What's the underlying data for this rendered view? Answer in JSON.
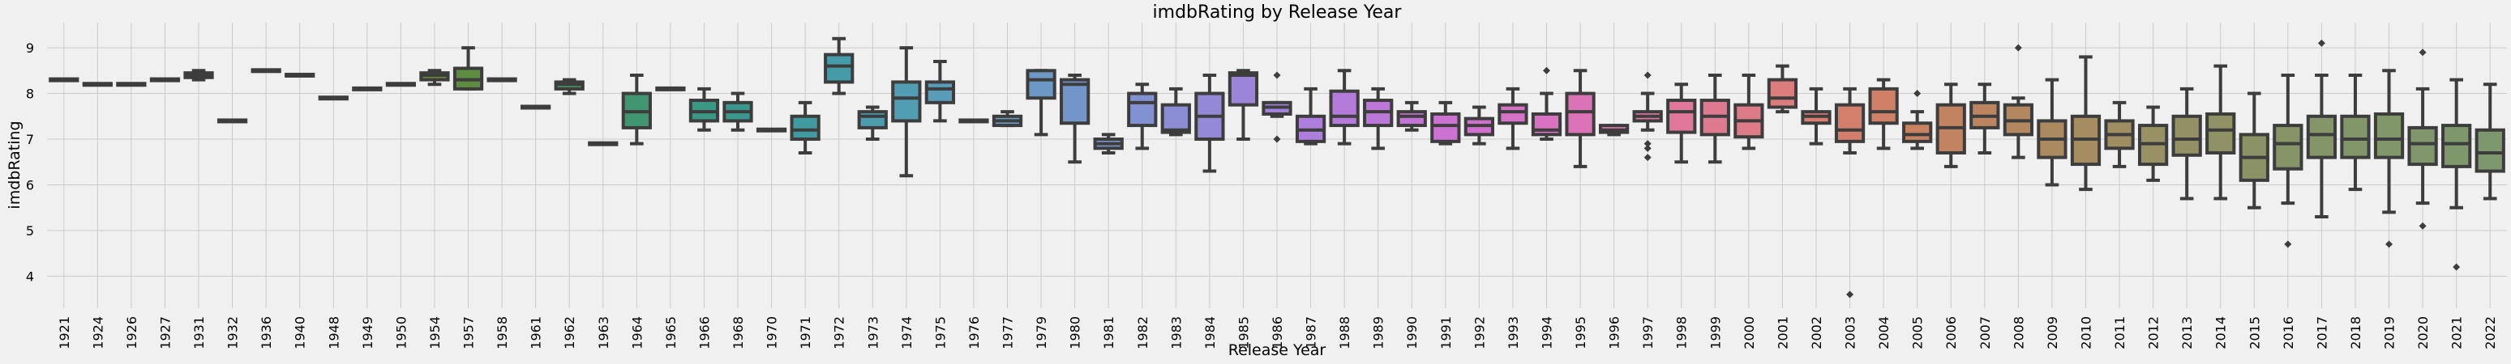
{
  "chart_data": {
    "type": "box",
    "title": "imdbRating by Release Year",
    "xlabel": "Release Year",
    "ylabel": "imdbRating",
    "ylim": [
      3.3,
      9.55
    ],
    "yticks": [
      4,
      5,
      6,
      7,
      8,
      9
    ],
    "grid": true,
    "categories": [
      "1921",
      "1924",
      "1926",
      "1927",
      "1931",
      "1932",
      "1936",
      "1940",
      "1948",
      "1949",
      "1950",
      "1954",
      "1957",
      "1958",
      "1961",
      "1962",
      "1963",
      "1964",
      "1965",
      "1966",
      "1968",
      "1970",
      "1971",
      "1972",
      "1973",
      "1974",
      "1975",
      "1976",
      "1977",
      "1979",
      "1980",
      "1981",
      "1982",
      "1983",
      "1984",
      "1985",
      "1986",
      "1987",
      "1988",
      "1989",
      "1990",
      "1991",
      "1992",
      "1993",
      "1994",
      "1995",
      "1996",
      "1997",
      "1998",
      "1999",
      "2000",
      "2001",
      "2002",
      "2003",
      "2004",
      "2005",
      "2006",
      "2007",
      "2008",
      "2009",
      "2010",
      "2011",
      "2012",
      "2013",
      "2014",
      "2015",
      "2016",
      "2017",
      "2018",
      "2019",
      "2020",
      "2021",
      "2022"
    ],
    "boxes": [
      {
        "min": 8.3,
        "q1": 8.3,
        "median": 8.3,
        "q3": 8.3,
        "max": 8.3,
        "outliers": []
      },
      {
        "min": 8.2,
        "q1": 8.2,
        "median": 8.2,
        "q3": 8.2,
        "max": 8.2,
        "outliers": []
      },
      {
        "min": 8.2,
        "q1": 8.2,
        "median": 8.2,
        "q3": 8.2,
        "max": 8.2,
        "outliers": []
      },
      {
        "min": 8.3,
        "q1": 8.3,
        "median": 8.3,
        "q3": 8.3,
        "max": 8.3,
        "outliers": []
      },
      {
        "min": 8.3,
        "q1": 8.35,
        "median": 8.4,
        "q3": 8.45,
        "max": 8.5,
        "outliers": []
      },
      {
        "min": 7.4,
        "q1": 7.4,
        "median": 7.4,
        "q3": 7.4,
        "max": 7.4,
        "outliers": []
      },
      {
        "min": 8.5,
        "q1": 8.5,
        "median": 8.5,
        "q3": 8.5,
        "max": 8.5,
        "outliers": []
      },
      {
        "min": 8.4,
        "q1": 8.4,
        "median": 8.4,
        "q3": 8.4,
        "max": 8.4,
        "outliers": []
      },
      {
        "min": 7.9,
        "q1": 7.9,
        "median": 7.9,
        "q3": 7.9,
        "max": 7.9,
        "outliers": []
      },
      {
        "min": 8.1,
        "q1": 8.1,
        "median": 8.1,
        "q3": 8.1,
        "max": 8.1,
        "outliers": []
      },
      {
        "min": 8.2,
        "q1": 8.2,
        "median": 8.2,
        "q3": 8.2,
        "max": 8.2,
        "outliers": []
      },
      {
        "min": 8.2,
        "q1": 8.3,
        "median": 8.4,
        "q3": 8.45,
        "max": 8.5,
        "outliers": []
      },
      {
        "min": 8.1,
        "q1": 8.1,
        "median": 8.3,
        "q3": 8.55,
        "max": 9.0,
        "outliers": []
      },
      {
        "min": 8.3,
        "q1": 8.3,
        "median": 8.3,
        "q3": 8.3,
        "max": 8.3,
        "outliers": []
      },
      {
        "min": 7.7,
        "q1": 7.7,
        "median": 7.7,
        "q3": 7.7,
        "max": 7.7,
        "outliers": []
      },
      {
        "min": 8.0,
        "q1": 8.1,
        "median": 8.2,
        "q3": 8.25,
        "max": 8.3,
        "outliers": []
      },
      {
        "min": 6.9,
        "q1": 6.9,
        "median": 6.9,
        "q3": 6.9,
        "max": 6.9,
        "outliers": []
      },
      {
        "min": 6.9,
        "q1": 7.25,
        "median": 7.6,
        "q3": 8.0,
        "max": 8.4,
        "outliers": []
      },
      {
        "min": 8.1,
        "q1": 8.1,
        "median": 8.1,
        "q3": 8.1,
        "max": 8.1,
        "outliers": []
      },
      {
        "min": 7.2,
        "q1": 7.4,
        "median": 7.6,
        "q3": 7.85,
        "max": 8.1,
        "outliers": []
      },
      {
        "min": 7.2,
        "q1": 7.4,
        "median": 7.6,
        "q3": 7.8,
        "max": 8.0,
        "outliers": []
      },
      {
        "min": 7.2,
        "q1": 7.2,
        "median": 7.2,
        "q3": 7.2,
        "max": 7.2,
        "outliers": []
      },
      {
        "min": 6.7,
        "q1": 7.0,
        "median": 7.2,
        "q3": 7.5,
        "max": 7.8,
        "outliers": []
      },
      {
        "min": 8.0,
        "q1": 8.25,
        "median": 8.6,
        "q3": 8.85,
        "max": 9.2,
        "outliers": []
      },
      {
        "min": 7.0,
        "q1": 7.25,
        "median": 7.5,
        "q3": 7.6,
        "max": 7.7,
        "outliers": []
      },
      {
        "min": 6.2,
        "q1": 7.4,
        "median": 7.9,
        "q3": 8.25,
        "max": 9.0,
        "outliers": []
      },
      {
        "min": 7.4,
        "q1": 7.8,
        "median": 8.1,
        "q3": 8.25,
        "max": 8.7,
        "outliers": []
      },
      {
        "min": 7.4,
        "q1": 7.4,
        "median": 7.4,
        "q3": 7.4,
        "max": 7.4,
        "outliers": []
      },
      {
        "min": 7.3,
        "q1": 7.3,
        "median": 7.4,
        "q3": 7.5,
        "max": 7.6,
        "outliers": []
      },
      {
        "min": 7.1,
        "q1": 7.9,
        "median": 8.3,
        "q3": 8.5,
        "max": 8.5,
        "outliers": []
      },
      {
        "min": 6.5,
        "q1": 7.35,
        "median": 8.2,
        "q3": 8.3,
        "max": 8.4,
        "outliers": []
      },
      {
        "min": 6.7,
        "q1": 6.8,
        "median": 6.9,
        "q3": 7.0,
        "max": 7.1,
        "outliers": []
      },
      {
        "min": 6.8,
        "q1": 7.3,
        "median": 7.8,
        "q3": 8.0,
        "max": 8.2,
        "outliers": []
      },
      {
        "min": 7.1,
        "q1": 7.15,
        "median": 7.2,
        "q3": 7.75,
        "max": 8.1,
        "outliers": []
      },
      {
        "min": 6.3,
        "q1": 7.0,
        "median": 7.5,
        "q3": 8.0,
        "max": 8.4,
        "outliers": []
      },
      {
        "min": 7.0,
        "q1": 7.75,
        "median": 8.4,
        "q3": 8.45,
        "max": 8.5,
        "outliers": []
      },
      {
        "min": 7.5,
        "q1": 7.55,
        "median": 7.7,
        "q3": 7.8,
        "max": 7.8,
        "outliers": [
          7.0,
          8.4
        ]
      },
      {
        "min": 6.9,
        "q1": 6.95,
        "median": 7.2,
        "q3": 7.5,
        "max": 8.1,
        "outliers": []
      },
      {
        "min": 6.9,
        "q1": 7.3,
        "median": 7.5,
        "q3": 8.05,
        "max": 8.5,
        "outliers": []
      },
      {
        "min": 6.8,
        "q1": 7.3,
        "median": 7.6,
        "q3": 7.85,
        "max": 8.1,
        "outliers": []
      },
      {
        "min": 7.2,
        "q1": 7.3,
        "median": 7.5,
        "q3": 7.6,
        "max": 7.8,
        "outliers": []
      },
      {
        "min": 6.9,
        "q1": 6.95,
        "median": 7.3,
        "q3": 7.55,
        "max": 7.8,
        "outliers": []
      },
      {
        "min": 6.9,
        "q1": 7.1,
        "median": 7.3,
        "q3": 7.45,
        "max": 7.7,
        "outliers": []
      },
      {
        "min": 6.8,
        "q1": 7.35,
        "median": 7.6,
        "q3": 7.75,
        "max": 8.1,
        "outliers": []
      },
      {
        "min": 7.0,
        "q1": 7.1,
        "median": 7.2,
        "q3": 7.55,
        "max": 8.0,
        "outliers": [
          8.5
        ]
      },
      {
        "min": 6.4,
        "q1": 7.1,
        "median": 7.6,
        "q3": 8.0,
        "max": 8.5,
        "outliers": []
      },
      {
        "min": 7.1,
        "q1": 7.15,
        "median": 7.2,
        "q3": 7.3,
        "max": 7.3,
        "outliers": []
      },
      {
        "min": 7.2,
        "q1": 7.4,
        "median": 7.5,
        "q3": 7.6,
        "max": 8.0,
        "outliers": [
          6.6,
          6.8,
          6.9,
          8.4
        ]
      },
      {
        "min": 6.5,
        "q1": 7.15,
        "median": 7.6,
        "q3": 7.85,
        "max": 8.2,
        "outliers": []
      },
      {
        "min": 6.5,
        "q1": 7.1,
        "median": 7.5,
        "q3": 7.85,
        "max": 8.4,
        "outliers": []
      },
      {
        "min": 6.8,
        "q1": 7.05,
        "median": 7.4,
        "q3": 7.75,
        "max": 8.4,
        "outliers": []
      },
      {
        "min": 7.6,
        "q1": 7.7,
        "median": 7.9,
        "q3": 8.3,
        "max": 8.6,
        "outliers": []
      },
      {
        "min": 6.9,
        "q1": 7.35,
        "median": 7.5,
        "q3": 7.6,
        "max": 8.1,
        "outliers": []
      },
      {
        "min": 6.7,
        "q1": 6.95,
        "median": 7.2,
        "q3": 7.75,
        "max": 8.1,
        "outliers": [
          3.6
        ]
      },
      {
        "min": 6.8,
        "q1": 7.35,
        "median": 7.6,
        "q3": 8.1,
        "max": 8.3,
        "outliers": []
      },
      {
        "min": 6.8,
        "q1": 6.95,
        "median": 7.1,
        "q3": 7.35,
        "max": 7.6,
        "outliers": [
          8.0
        ]
      },
      {
        "min": 6.4,
        "q1": 6.7,
        "median": 7.25,
        "q3": 7.75,
        "max": 8.2,
        "outliers": []
      },
      {
        "min": 6.7,
        "q1": 7.25,
        "median": 7.5,
        "q3": 7.8,
        "max": 8.2,
        "outliers": []
      },
      {
        "min": 6.6,
        "q1": 7.1,
        "median": 7.4,
        "q3": 7.75,
        "max": 7.9,
        "outliers": [
          9.0
        ]
      },
      {
        "min": 6.0,
        "q1": 6.6,
        "median": 7.0,
        "q3": 7.4,
        "max": 8.3,
        "outliers": []
      },
      {
        "min": 5.9,
        "q1": 6.45,
        "median": 7.0,
        "q3": 7.5,
        "max": 8.8,
        "outliers": []
      },
      {
        "min": 6.4,
        "q1": 6.8,
        "median": 7.1,
        "q3": 7.4,
        "max": 7.8,
        "outliers": []
      },
      {
        "min": 6.1,
        "q1": 6.45,
        "median": 6.9,
        "q3": 7.3,
        "max": 7.7,
        "outliers": []
      },
      {
        "min": 5.7,
        "q1": 6.65,
        "median": 7.0,
        "q3": 7.5,
        "max": 8.1,
        "outliers": []
      },
      {
        "min": 5.7,
        "q1": 6.7,
        "median": 7.2,
        "q3": 7.55,
        "max": 8.6,
        "outliers": []
      },
      {
        "min": 5.5,
        "q1": 6.1,
        "median": 6.6,
        "q3": 7.1,
        "max": 8.0,
        "outliers": []
      },
      {
        "min": 5.6,
        "q1": 6.35,
        "median": 6.9,
        "q3": 7.3,
        "max": 8.4,
        "outliers": [
          4.7
        ]
      },
      {
        "min": 5.3,
        "q1": 6.6,
        "median": 7.1,
        "q3": 7.5,
        "max": 8.4,
        "outliers": [
          9.1
        ]
      },
      {
        "min": 5.9,
        "q1": 6.6,
        "median": 7.0,
        "q3": 7.5,
        "max": 8.4,
        "outliers": []
      },
      {
        "min": 5.4,
        "q1": 6.6,
        "median": 7.0,
        "q3": 7.55,
        "max": 8.5,
        "outliers": [
          4.7
        ]
      },
      {
        "min": 5.6,
        "q1": 6.45,
        "median": 6.9,
        "q3": 7.25,
        "max": 8.1,
        "outliers": [
          5.1,
          8.9
        ]
      },
      {
        "min": 5.5,
        "q1": 6.4,
        "median": 6.9,
        "q3": 7.3,
        "max": 8.3,
        "outliers": [
          4.2
        ]
      },
      {
        "min": 5.7,
        "q1": 6.3,
        "median": 6.7,
        "q3": 7.2,
        "max": 8.2,
        "outliers": []
      }
    ],
    "colors": [
      "#636363",
      "#6a6a68",
      "#6e6e6b",
      "#70706c",
      "#737266",
      "#76745e",
      "#797552",
      "#7b7742",
      "#7b7a31",
      "#797d2c",
      "#728232",
      "#67883a",
      "#5e8c41",
      "#55904a",
      "#4d9354",
      "#47955f",
      "#439668",
      "#3f9671",
      "#3c977b",
      "#3a9885",
      "#3a998f",
      "#3c9a98",
      "#409ba0",
      "#459ca8",
      "#4b9dae",
      "#519db4",
      "#589cb9",
      "#5e9bbd",
      "#659ac1",
      "#6c98c5",
      "#7396ca",
      "#7a94ce",
      "#8291d2",
      "#8b8ed5",
      "#9389d7",
      "#9c85d9",
      "#a482db",
      "#ad7edb",
      "#b57bdb",
      "#bd77d9",
      "#c474d6",
      "#cb72d3",
      "#d171ce",
      "#d671c8",
      "#d972c0",
      "#dc73b8",
      "#de74ae",
      "#df76a4",
      "#df789a",
      "#de7a90",
      "#dd7b86",
      "#db7c7d",
      "#d87e74",
      "#d47f6c",
      "#cf8066",
      "#c98262",
      "#c28460",
      "#bb865f",
      "#b3885f",
      "#ac8a60",
      "#a58c61",
      "#9e8e62",
      "#999063",
      "#939164",
      "#8f9265",
      "#8b9366",
      "#879467",
      "#849568",
      "#829669",
      "#80976a",
      "#7f976b",
      "#7e986c",
      "#7d986d"
    ]
  }
}
